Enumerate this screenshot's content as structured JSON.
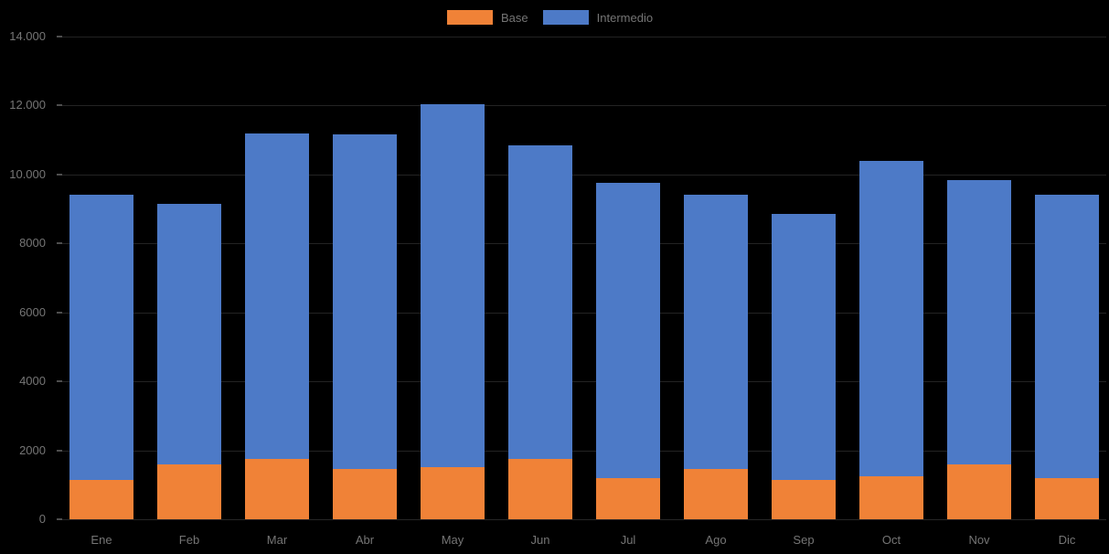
{
  "chart_data": {
    "type": "bar",
    "stacked": true,
    "title": "",
    "xlabel": "",
    "ylabel": "",
    "categories": [
      "Ene",
      "Feb",
      "Mar",
      "Abr",
      "May",
      "Jun",
      "Jul",
      "Ago",
      "Sep",
      "Oct",
      "Nov",
      "Dic"
    ],
    "series": [
      {
        "name": "Base",
        "color": "#F08237",
        "values": [
          1150,
          1600,
          1750,
          1450,
          1500,
          1750,
          1200,
          1450,
          1150,
          1250,
          1600,
          1200
        ]
      },
      {
        "name": "Intermedio",
        "color": "#4D7AC7",
        "values": [
          8250,
          7550,
          9450,
          9700,
          10550,
          9100,
          8550,
          7950,
          7700,
          9150,
          8250,
          8200
        ]
      }
    ],
    "stacked_totals": [
      9400,
      9150,
      11200,
      11150,
      12050,
      10850,
      9750,
      9400,
      8850,
      10400,
      9850,
      9400
    ],
    "ylim": [
      0,
      14000
    ],
    "y_tick_interval": 2000,
    "y_tick_labels": [
      "0",
      "2000",
      "4000",
      "6000",
      "8000",
      "10.000",
      "12.000",
      "14.000"
    ],
    "grid": "faint horizontal gridlines every 2000",
    "legend_position": "top-center",
    "background_color": "#000000",
    "text_color": "#757575"
  }
}
